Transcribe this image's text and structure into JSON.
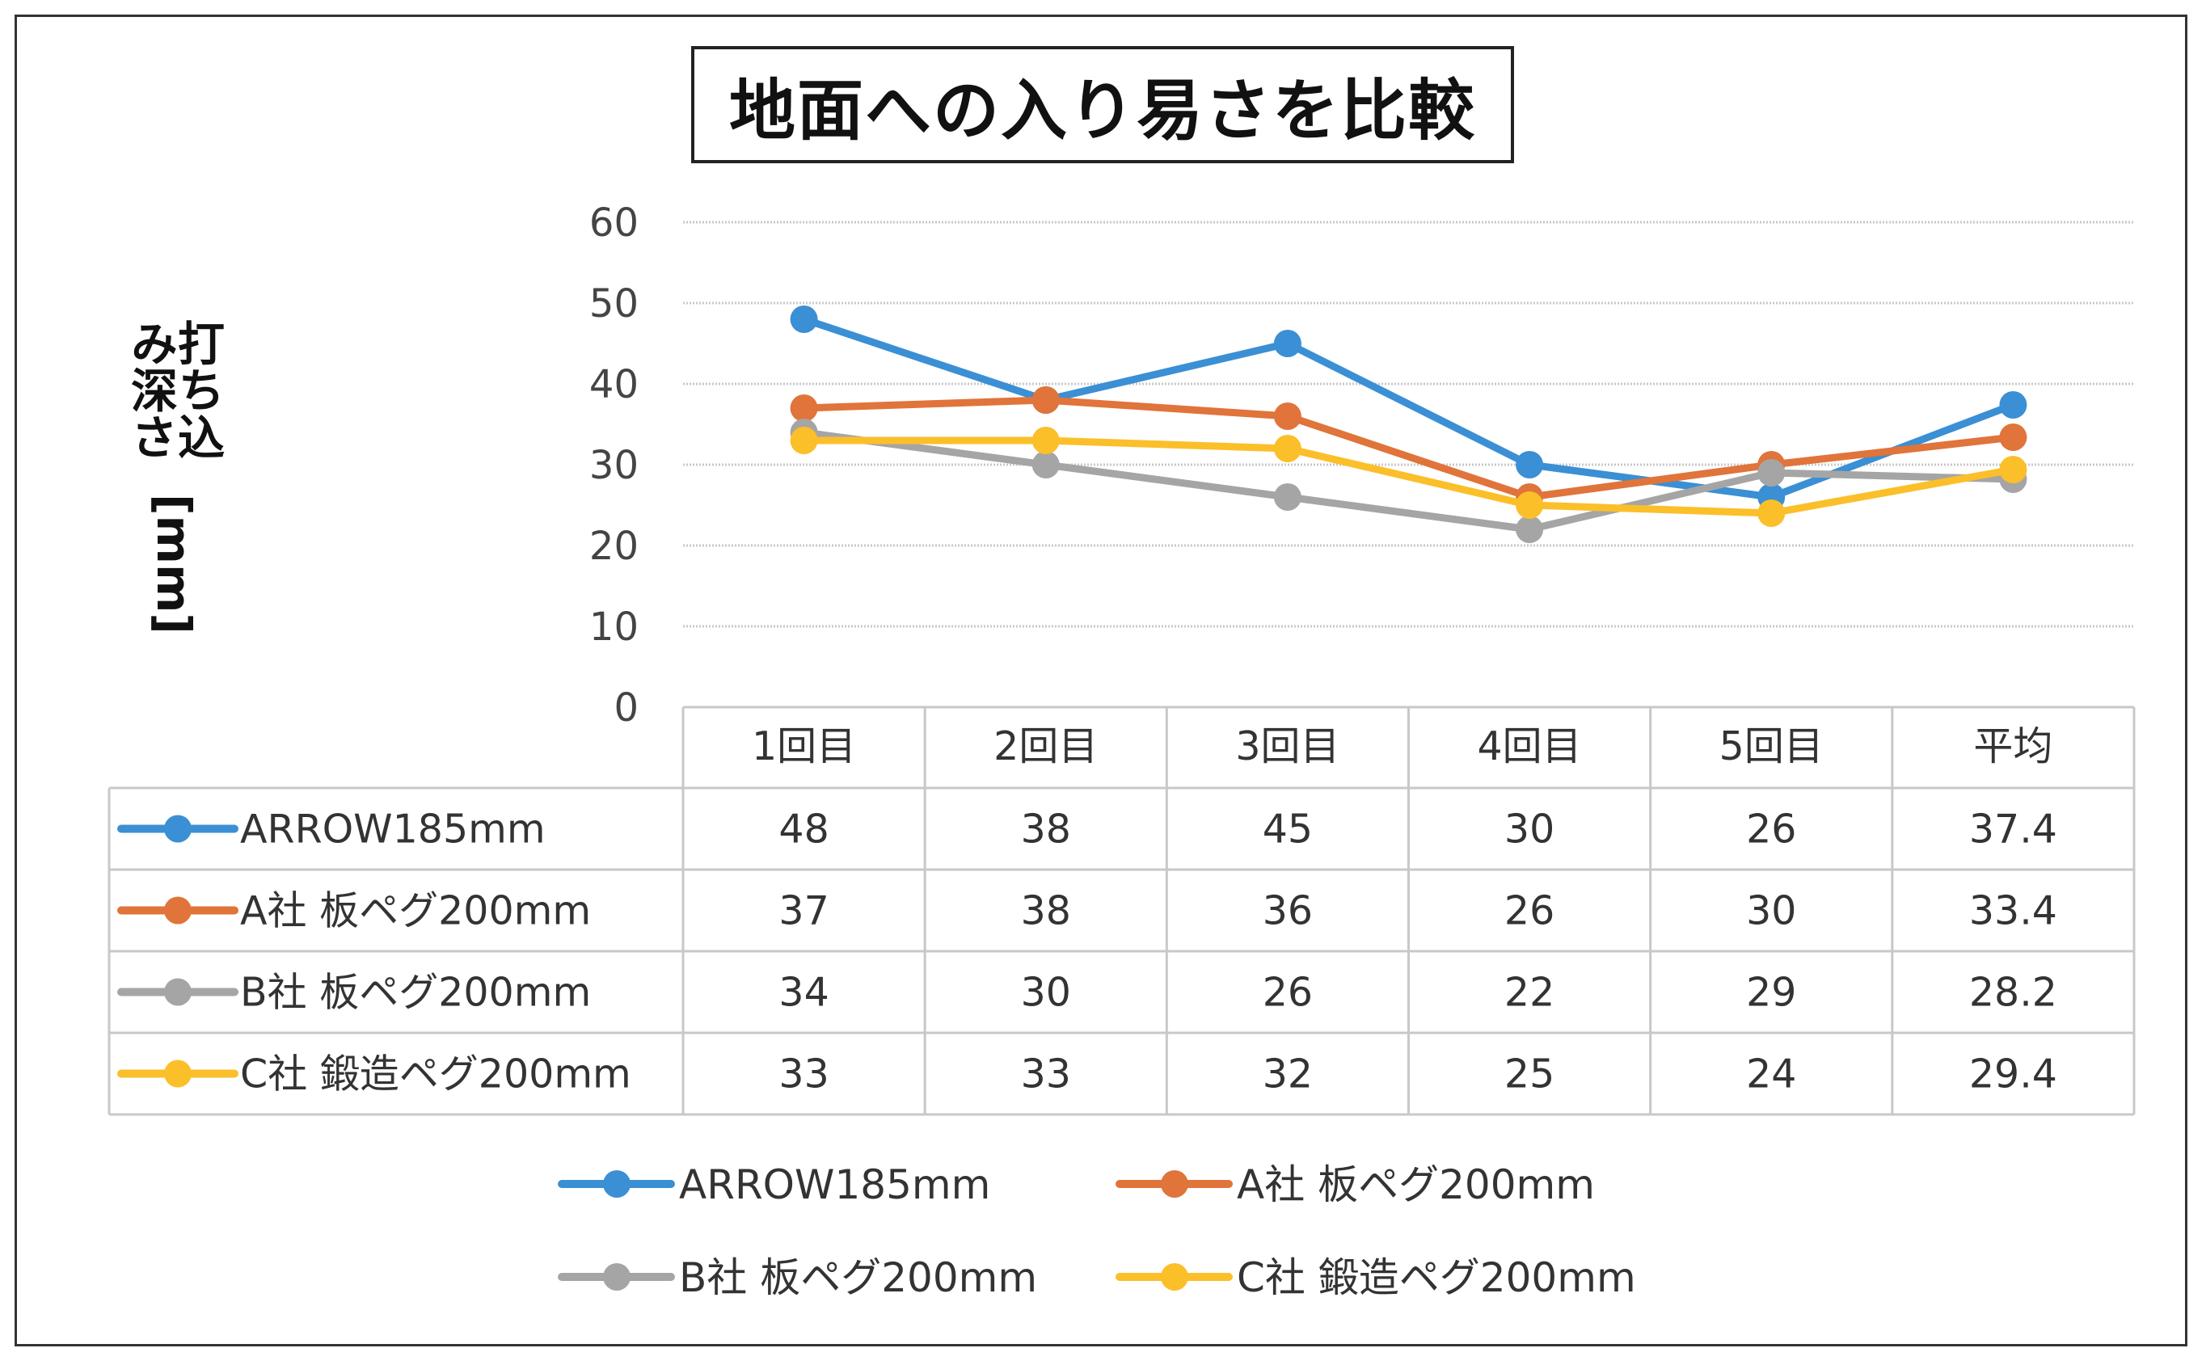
{
  "title": "地面への入り易さを比較",
  "ylabel_line1": "打ち込み深さ",
  "ylabel_line2": "[mm]",
  "colors": {
    "ARROW185mm": "#3b8fd4",
    "A社 板ペグ200mm": "#e0743a",
    "B社 板ペグ200mm": "#a5a5a5",
    "C社 鍛造ペグ200mm": "#fbbf2a"
  },
  "chart_data": {
    "type": "line",
    "title": "地面への入り易さを比較",
    "ylabel": "打ち込み深さ [mm]",
    "xlabel": "",
    "ylim": [
      0,
      60
    ],
    "yticks": [
      0,
      10,
      20,
      30,
      40,
      50,
      60
    ],
    "grid": true,
    "legend": "bottom",
    "categories": [
      "1回目",
      "2回目",
      "3回目",
      "4回目",
      "5回目",
      "平均"
    ],
    "series": [
      {
        "name": "ARROW185mm",
        "values": [
          48,
          38,
          45,
          30,
          26,
          37.4
        ],
        "labels": [
          "48",
          "38",
          "45",
          "30",
          "26",
          "37.4"
        ]
      },
      {
        "name": "A社 板ペグ200mm",
        "values": [
          37,
          38,
          36,
          26,
          30,
          33.4
        ],
        "labels": [
          "37",
          "38",
          "36",
          "26",
          "30",
          "33.4"
        ]
      },
      {
        "name": "B社 板ペグ200mm",
        "values": [
          34,
          30,
          26,
          22,
          29,
          28.2
        ],
        "labels": [
          "34",
          "30",
          "26",
          "22",
          "29",
          "28.2"
        ]
      },
      {
        "name": "C社 鍛造ペグ200mm",
        "values": [
          33,
          33,
          32,
          25,
          24,
          29.4
        ],
        "labels": [
          "33",
          "33",
          "32",
          "25",
          "24",
          "29.4"
        ]
      }
    ]
  }
}
